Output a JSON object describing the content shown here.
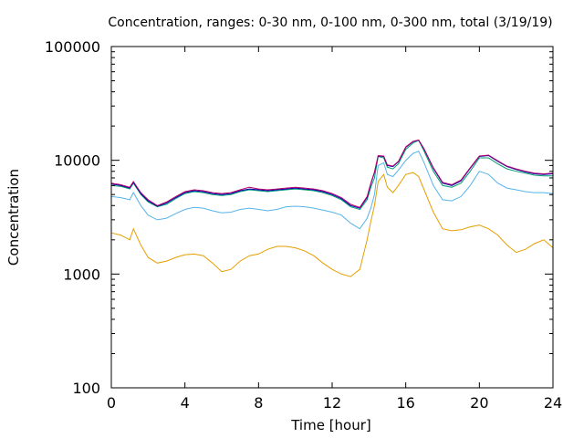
{
  "chart_data": {
    "type": "line",
    "title": "Concentration, ranges: 0-30 nm, 0-100 nm, 0-300 nm, total (3/19/19)",
    "xlabel": "Time [hour]",
    "ylabel": "Concentration",
    "xlim": [
      0,
      24
    ],
    "ylim": [
      100,
      100000
    ],
    "yscale": "log",
    "grid": false,
    "legend": "none",
    "x_ticks": [
      0,
      4,
      8,
      12,
      16,
      20,
      24
    ],
    "x_tick_labels": [
      "0",
      "4",
      "8",
      "12",
      "16",
      "20",
      "24"
    ],
    "y_ticks": [
      100,
      1000,
      10000,
      100000
    ],
    "y_tick_labels": [
      "100",
      "1000",
      "10000",
      "100000"
    ],
    "x": [
      0,
      0.5,
      1,
      1.2,
      1.6,
      2,
      2.5,
      3,
      3.5,
      4,
      4.5,
      5,
      5.5,
      6,
      6.5,
      7,
      7.5,
      8,
      8.5,
      9,
      9.5,
      10,
      10.5,
      11,
      11.5,
      12,
      12.5,
      13,
      13.5,
      13.9,
      14.1,
      14.3,
      14.5,
      14.8,
      15,
      15.3,
      15.6,
      16,
      16.4,
      16.7,
      17,
      17.5,
      18,
      18.5,
      19,
      19.5,
      20,
      20.5,
      21,
      21.5,
      22,
      22.5,
      23,
      23.5,
      24
    ],
    "series": [
      {
        "color": "#e69f00",
        "values": [
          2300,
          2200,
          2000,
          2500,
          1800,
          1400,
          1250,
          1300,
          1400,
          1480,
          1500,
          1450,
          1250,
          1050,
          1100,
          1300,
          1450,
          1500,
          1650,
          1750,
          1750,
          1700,
          1600,
          1450,
          1250,
          1100,
          1000,
          950,
          1100,
          2000,
          2900,
          4000,
          6500,
          7500,
          5800,
          5200,
          6000,
          7500,
          7800,
          7200,
          5500,
          3500,
          2500,
          2400,
          2450,
          2600,
          2700,
          2500,
          2200,
          1800,
          1550,
          1650,
          1850,
          2000,
          1700
        ]
      },
      {
        "color": "#56b4e9",
        "values": [
          4800,
          4700,
          4500,
          5200,
          4000,
          3300,
          3000,
          3100,
          3400,
          3700,
          3850,
          3800,
          3600,
          3450,
          3500,
          3700,
          3800,
          3700,
          3600,
          3700,
          3900,
          3950,
          3900,
          3800,
          3650,
          3500,
          3300,
          2800,
          2500,
          3100,
          3800,
          5000,
          9000,
          9500,
          7500,
          7200,
          8200,
          10000,
          11500,
          12000,
          9500,
          6000,
          4500,
          4400,
          4800,
          6000,
          8000,
          7500,
          6300,
          5700,
          5500,
          5300,
          5200,
          5200,
          5100
        ]
      },
      {
        "color": "#009e73",
        "values": [
          6000,
          5900,
          5600,
          6300,
          5000,
          4300,
          3900,
          4100,
          4600,
          5100,
          5300,
          5200,
          5000,
          4900,
          5000,
          5300,
          5500,
          5400,
          5300,
          5400,
          5500,
          5600,
          5500,
          5400,
          5200,
          4900,
          4500,
          3900,
          3700,
          4500,
          5800,
          7000,
          10800,
          10500,
          8700,
          8400,
          9300,
          12500,
          14200,
          15000,
          12000,
          8000,
          6000,
          5800,
          6300,
          8000,
          10500,
          10500,
          9300,
          8400,
          8000,
          7700,
          7400,
          7300,
          7300
        ]
      },
      {
        "color": "#0000aa",
        "values": [
          6200,
          6000,
          5700,
          6400,
          5100,
          4400,
          3950,
          4200,
          4700,
          5200,
          5400,
          5300,
          5100,
          5000,
          5100,
          5400,
          5600,
          5500,
          5400,
          5500,
          5600,
          5700,
          5600,
          5500,
          5300,
          5000,
          4600,
          4000,
          3800,
          4700,
          6200,
          7800,
          10900,
          10800,
          9000,
          8800,
          9700,
          13000,
          14600,
          15000,
          12500,
          8500,
          6300,
          6000,
          6600,
          8500,
          10800,
          11000,
          9800,
          8800,
          8300,
          7900,
          7600,
          7500,
          7600
        ]
      },
      {
        "color": "#b5006b",
        "values": [
          6300,
          6100,
          5800,
          6500,
          5200,
          4500,
          4000,
          4300,
          4800,
          5300,
          5500,
          5400,
          5200,
          5100,
          5200,
          5500,
          5800,
          5600,
          5500,
          5600,
          5700,
          5800,
          5700,
          5600,
          5400,
          5100,
          4700,
          4100,
          3850,
          4800,
          6300,
          7900,
          11000,
          10900,
          9100,
          8900,
          9800,
          13100,
          14700,
          15100,
          12600,
          8600,
          6400,
          6100,
          6700,
          8600,
          10900,
          11100,
          9900,
          8900,
          8400,
          8000,
          7700,
          7600,
          7700
        ]
      }
    ]
  }
}
